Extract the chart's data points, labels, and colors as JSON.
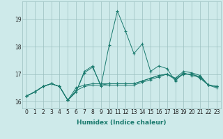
{
  "xlabel": "Humidex (Indice chaleur)",
  "x_values": [
    0,
    1,
    2,
    3,
    4,
    5,
    6,
    7,
    8,
    9,
    10,
    11,
    12,
    13,
    14,
    15,
    16,
    17,
    18,
    19,
    20,
    21,
    22,
    23
  ],
  "lines": [
    [
      16.2,
      16.35,
      16.55,
      16.65,
      16.55,
      16.05,
      16.35,
      17.1,
      17.3,
      16.55,
      18.05,
      19.3,
      18.55,
      17.75,
      18.1,
      17.1,
      17.3,
      17.2,
      16.75,
      17.05,
      16.95,
      16.9,
      16.6,
      16.55
    ],
    [
      16.2,
      16.35,
      16.55,
      16.65,
      16.55,
      16.05,
      16.35,
      17.05,
      17.25,
      16.6,
      16.65,
      16.65,
      16.65,
      16.65,
      16.75,
      16.85,
      16.95,
      17.0,
      16.85,
      17.1,
      17.05,
      16.95,
      16.6,
      16.55
    ],
    [
      16.2,
      16.35,
      16.55,
      16.65,
      16.55,
      16.05,
      16.5,
      16.6,
      16.65,
      16.65,
      16.65,
      16.65,
      16.65,
      16.65,
      16.75,
      16.85,
      16.95,
      17.0,
      16.85,
      17.0,
      17.0,
      16.9,
      16.6,
      16.55
    ],
    [
      16.2,
      16.35,
      16.55,
      16.65,
      16.55,
      16.05,
      16.4,
      16.55,
      16.6,
      16.6,
      16.6,
      16.6,
      16.6,
      16.6,
      16.7,
      16.8,
      16.9,
      17.0,
      16.8,
      17.0,
      17.0,
      16.85,
      16.6,
      16.5
    ]
  ],
  "line_color": "#1a7a6e",
  "bg_color": "#ceeaea",
  "grid_color": "#9bbfbf",
  "ylim": [
    15.75,
    19.65
  ],
  "yticks": [
    16,
    17,
    18,
    19
  ],
  "xticks": [
    0,
    1,
    2,
    3,
    4,
    5,
    6,
    7,
    8,
    9,
    10,
    11,
    12,
    13,
    14,
    15,
    16,
    17,
    18,
    19,
    20,
    21,
    22,
    23
  ],
  "marker": "+"
}
